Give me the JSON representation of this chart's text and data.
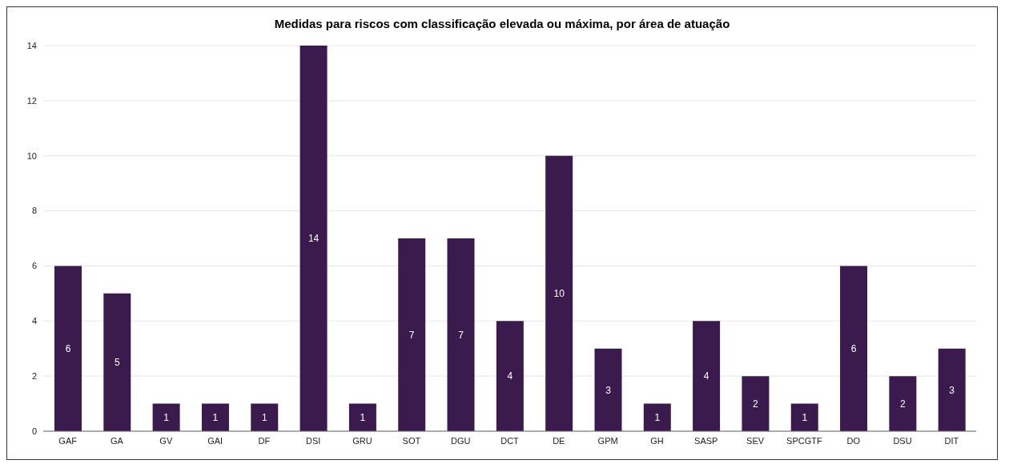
{
  "chart_data": {
    "type": "bar",
    "title": "Medidas para riscos com classificação elevada ou máxima, por área de atuação",
    "categories": [
      "GAF",
      "GA",
      "GV",
      "GAI",
      "DF",
      "DSI",
      "GRU",
      "SOT",
      "DGU",
      "DCT",
      "DE",
      "GPM",
      "GH",
      "SASP",
      "SEV",
      "SPCGTF",
      "DO",
      "DSU",
      "DIT"
    ],
    "values": [
      6,
      5,
      1,
      1,
      1,
      14,
      1,
      7,
      7,
      4,
      10,
      3,
      1,
      4,
      2,
      1,
      6,
      2,
      3
    ],
    "color": "#3b1a4e",
    "ylim": [
      0,
      14
    ],
    "yticks": [
      0,
      2,
      4,
      6,
      8,
      10,
      12,
      14
    ],
    "grid": "y",
    "data_labels": true
  }
}
